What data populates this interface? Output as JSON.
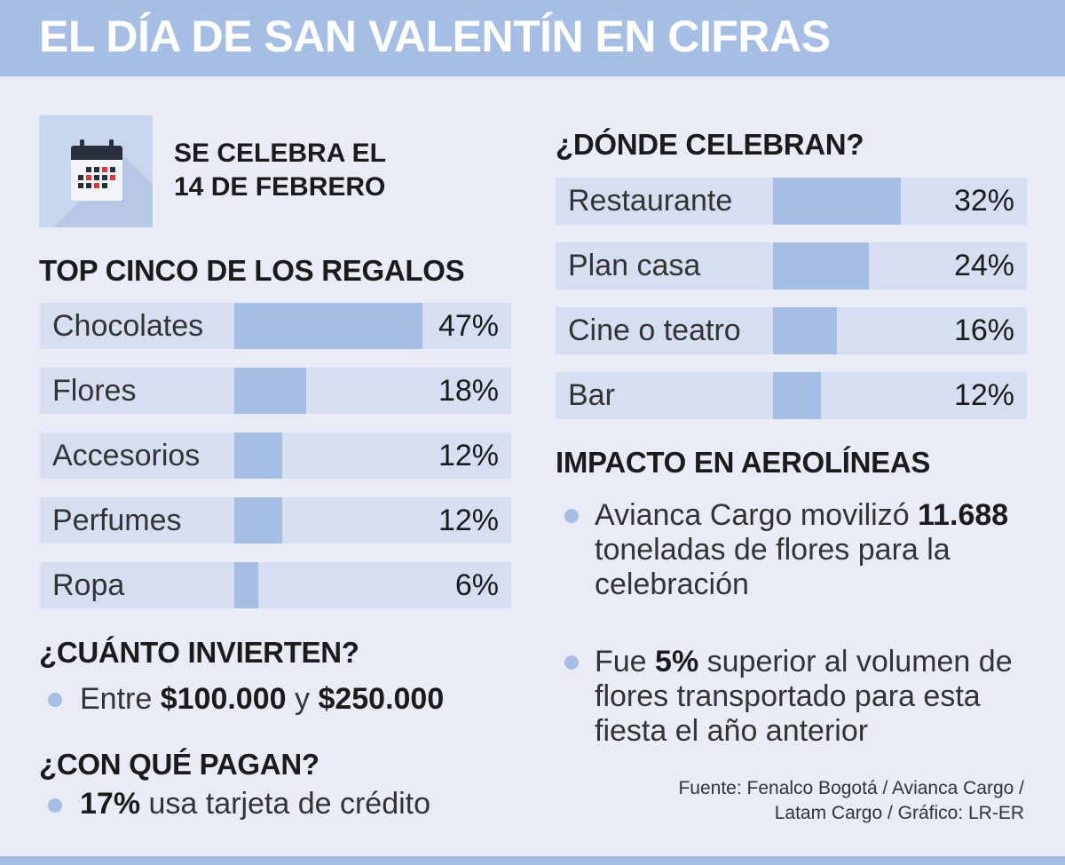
{
  "header": {
    "title": "EL DÍA DE SAN VALENTÍN EN CIFRAS"
  },
  "colors": {
    "accent": "#a6bde4",
    "track": "#d6def2",
    "background": "#e9ecf7",
    "calendar_red": "#e0333a",
    "calendar_dark": "#2a2f3d"
  },
  "icons": {
    "calendar": "calendar-icon",
    "bullet": "bullet-dot"
  },
  "date_box": {
    "line1": "SE CELEBRA EL",
    "line2": "14 DE FEBRERO"
  },
  "chart_data": [
    {
      "type": "bar",
      "orientation": "horizontal",
      "title": "TOP CINCO DE LOS REGALOS",
      "categories": [
        "Chocolates",
        "Flores",
        "Accesorios",
        "Perfumes",
        "Ropa"
      ],
      "values": [
        47,
        18,
        12,
        12,
        6
      ],
      "labels": [
        "47%",
        "18%",
        "12%",
        "12%",
        "6%"
      ],
      "xlim": [
        0,
        47
      ]
    },
    {
      "type": "bar",
      "orientation": "horizontal",
      "title": "¿DÓNDE CELEBRAN?",
      "categories": [
        "Restaurante",
        "Plan casa",
        "Cine o teatro",
        "Bar"
      ],
      "values": [
        32,
        24,
        16,
        12
      ],
      "labels": [
        "32%",
        "24%",
        "16%",
        "12%"
      ],
      "xlim": [
        0,
        90
      ]
    }
  ],
  "invest": {
    "title": "¿CUÁNTO INVIERTEN?",
    "prefix": "Entre ",
    "low": "$100.000",
    "mid": " y ",
    "high": "$250.000"
  },
  "pay": {
    "title": "¿CON QUÉ PAGAN?",
    "pct": "17%",
    "text": " usa tarjeta de crédito"
  },
  "airlines": {
    "title": "IMPACTO EN AEROLÍNEAS",
    "item1": {
      "pre": "Avianca Cargo movilizó ",
      "num": "11.688",
      "post": " toneladas de flores para la celebración"
    },
    "item2": {
      "pre": "Fue ",
      "num": "5%",
      "post": " superior al volumen de flores transportado para esta fiesta el año anterior"
    }
  },
  "source": {
    "line1": "Fuente: Fenalco Bogotá / Avianca Cargo /",
    "line2": "Latam Cargo / Gráfico: LR-ER"
  }
}
